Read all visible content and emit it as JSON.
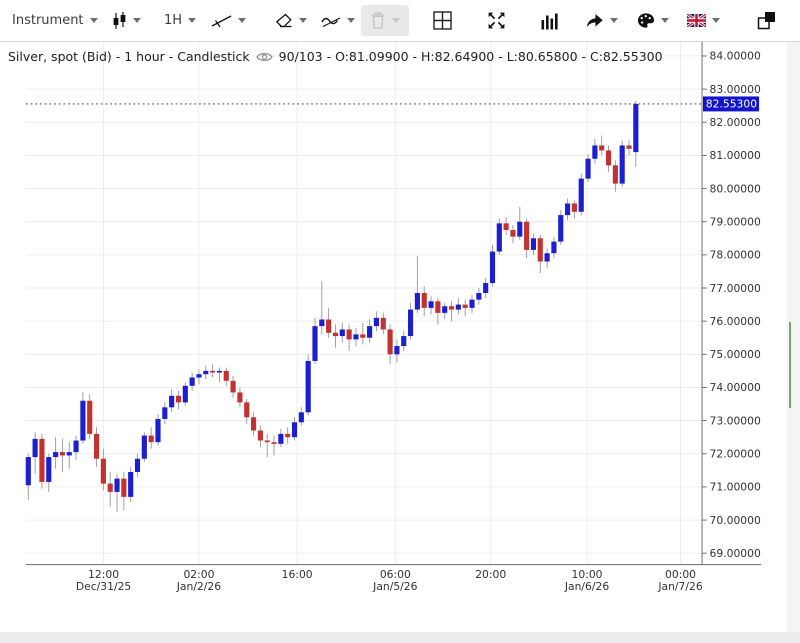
{
  "toolbar": {
    "instrument_label": "Instrument",
    "timeframe_label": "1H",
    "icons": [
      "candlestick-icon",
      "trend-line-icon",
      "eraser-icon",
      "indicator-zigzag-icon",
      "trash-icon",
      "grid-pane-icon",
      "expand-icon",
      "bar-chart-icon",
      "share-arrow-icon",
      "palette-icon",
      "uk-flag-icon",
      "overlapping-windows-icon"
    ]
  },
  "header": {
    "title": "Silver, spot (Bid) - 1 hour - Candlestick",
    "stats": "90/103 - O:81.09900 - H:82.64900 - L:80.65800 - C:82.55300",
    "visibility_icon": "eye-icon"
  },
  "chart_data": {
    "type": "candlestick",
    "symbol": "Silver, spot (Bid)",
    "timeframe": "1 hour",
    "visible_bars": "90/103",
    "last_bar": {
      "open": 81.099,
      "high": 82.649,
      "low": 80.658,
      "close": 82.553
    },
    "current_price": 82.553,
    "current_price_label": "82.55300",
    "y_axis": {
      "min": 69,
      "max": 84,
      "step": 1,
      "ticks": [
        {
          "value": 84,
          "label": "84.00000"
        },
        {
          "value": 83,
          "label": "83.00000"
        },
        {
          "value": 82,
          "label": "82.00000"
        },
        {
          "value": 81,
          "label": "81.00000"
        },
        {
          "value": 80,
          "label": "80.00000"
        },
        {
          "value": 79,
          "label": "79.00000"
        },
        {
          "value": 78,
          "label": "78.00000"
        },
        {
          "value": 77,
          "label": "77.00000"
        },
        {
          "value": 76,
          "label": "76.00000"
        },
        {
          "value": 75,
          "label": "75.00000"
        },
        {
          "value": 74,
          "label": "74.00000"
        },
        {
          "value": 73,
          "label": "73.00000"
        },
        {
          "value": 72,
          "label": "72.00000"
        },
        {
          "value": 71,
          "label": "71.00000"
        },
        {
          "value": 70,
          "label": "70.00000"
        },
        {
          "value": 69,
          "label": "69.00000"
        }
      ]
    },
    "x_axis": {
      "ticks": [
        {
          "time": "12:00",
          "date": "Dec/31/25"
        },
        {
          "time": "02:00",
          "date": "Jan/2/26"
        },
        {
          "time": "16:00",
          "date": ""
        },
        {
          "time": "06:00",
          "date": "Jan/5/26"
        },
        {
          "time": "20:00",
          "date": ""
        },
        {
          "time": "10:00",
          "date": "Jan/6/26"
        },
        {
          "time": "00:00",
          "date": "Jan/7/26"
        }
      ]
    },
    "candles": [
      [
        71.05,
        72.0,
        70.6,
        71.9
      ],
      [
        71.9,
        72.65,
        71.4,
        72.45
      ],
      [
        72.45,
        72.6,
        70.95,
        71.15
      ],
      [
        71.15,
        72.0,
        70.85,
        71.9
      ],
      [
        71.9,
        72.5,
        71.55,
        72.05
      ],
      [
        72.05,
        72.45,
        71.45,
        71.95
      ],
      [
        71.95,
        72.35,
        71.55,
        72.05
      ],
      [
        72.05,
        72.55,
        71.8,
        72.4
      ],
      [
        72.4,
        73.85,
        72.3,
        73.6
      ],
      [
        73.6,
        73.8,
        72.45,
        72.6
      ],
      [
        72.6,
        72.8,
        71.6,
        71.85
      ],
      [
        71.85,
        72.15,
        70.9,
        71.1
      ],
      [
        71.1,
        71.45,
        70.4,
        70.85
      ],
      [
        70.85,
        71.4,
        70.25,
        71.25
      ],
      [
        71.25,
        71.45,
        70.3,
        70.7
      ],
      [
        70.7,
        71.6,
        70.55,
        71.45
      ],
      [
        71.45,
        72.0,
        71.3,
        71.85
      ],
      [
        71.85,
        72.65,
        71.75,
        72.55
      ],
      [
        72.55,
        72.8,
        72.15,
        72.35
      ],
      [
        72.35,
        73.2,
        72.25,
        73.05
      ],
      [
        73.05,
        73.55,
        72.9,
        73.4
      ],
      [
        73.4,
        73.95,
        73.25,
        73.75
      ],
      [
        73.75,
        73.9,
        73.35,
        73.55
      ],
      [
        73.55,
        74.15,
        73.45,
        74.05
      ],
      [
        74.05,
        74.45,
        73.9,
        74.3
      ],
      [
        74.3,
        74.55,
        74.1,
        74.4
      ],
      [
        74.4,
        74.65,
        74.25,
        74.5
      ],
      [
        74.5,
        74.7,
        74.3,
        74.45
      ],
      [
        74.45,
        74.6,
        74.15,
        74.5
      ],
      [
        74.5,
        74.6,
        74.05,
        74.2
      ],
      [
        74.2,
        74.35,
        73.7,
        73.85
      ],
      [
        73.85,
        74.0,
        73.4,
        73.55
      ],
      [
        73.55,
        73.65,
        72.9,
        73.1
      ],
      [
        73.1,
        73.25,
        72.55,
        72.7
      ],
      [
        72.7,
        72.85,
        72.2,
        72.4
      ],
      [
        72.4,
        72.6,
        71.9,
        72.35
      ],
      [
        72.35,
        72.55,
        71.95,
        72.3
      ],
      [
        72.3,
        72.75,
        72.2,
        72.6
      ],
      [
        72.6,
        72.8,
        72.3,
        72.5
      ],
      [
        72.5,
        73.1,
        72.4,
        72.95
      ],
      [
        72.95,
        73.4,
        72.85,
        73.25
      ],
      [
        73.25,
        75.0,
        73.15,
        74.8
      ],
      [
        74.8,
        76.1,
        74.7,
        75.85
      ],
      [
        75.85,
        77.2,
        75.6,
        76.05
      ],
      [
        76.05,
        76.4,
        75.5,
        75.65
      ],
      [
        75.65,
        75.9,
        75.2,
        75.55
      ],
      [
        75.55,
        75.95,
        75.35,
        75.75
      ],
      [
        75.75,
        75.9,
        75.1,
        75.45
      ],
      [
        75.45,
        75.8,
        75.25,
        75.6
      ],
      [
        75.6,
        75.95,
        75.3,
        75.5
      ],
      [
        75.5,
        76.05,
        75.35,
        75.85
      ],
      [
        75.85,
        76.3,
        75.7,
        76.1
      ],
      [
        76.1,
        76.25,
        75.6,
        75.75
      ],
      [
        75.75,
        75.9,
        74.7,
        75.0
      ],
      [
        75.0,
        75.45,
        74.75,
        75.25
      ],
      [
        75.25,
        75.7,
        75.1,
        75.55
      ],
      [
        75.55,
        76.55,
        75.45,
        76.35
      ],
      [
        76.35,
        77.95,
        76.25,
        76.85
      ],
      [
        76.85,
        77.05,
        76.15,
        76.4
      ],
      [
        76.4,
        76.75,
        76.2,
        76.6
      ],
      [
        76.6,
        76.7,
        75.9,
        76.25
      ],
      [
        76.25,
        76.55,
        76.05,
        76.45
      ],
      [
        76.45,
        76.6,
        76.0,
        76.35
      ],
      [
        76.35,
        76.7,
        76.2,
        76.5
      ],
      [
        76.5,
        76.65,
        76.15,
        76.4
      ],
      [
        76.4,
        76.8,
        76.25,
        76.65
      ],
      [
        76.65,
        77.0,
        76.5,
        76.85
      ],
      [
        76.85,
        77.3,
        76.7,
        77.15
      ],
      [
        77.15,
        78.3,
        77.05,
        78.1
      ],
      [
        78.1,
        79.1,
        78.0,
        78.95
      ],
      [
        78.95,
        79.15,
        78.6,
        78.75
      ],
      [
        78.75,
        78.9,
        78.35,
        78.55
      ],
      [
        78.55,
        79.45,
        78.45,
        79.0
      ],
      [
        79.0,
        79.1,
        77.9,
        78.15
      ],
      [
        78.15,
        78.65,
        78.0,
        78.5
      ],
      [
        78.5,
        78.6,
        77.45,
        77.8
      ],
      [
        77.8,
        78.2,
        77.6,
        78.05
      ],
      [
        78.05,
        78.55,
        77.9,
        78.4
      ],
      [
        78.4,
        79.35,
        78.3,
        79.2
      ],
      [
        79.2,
        79.7,
        79.05,
        79.55
      ],
      [
        79.55,
        79.65,
        79.1,
        79.3
      ],
      [
        79.3,
        80.45,
        79.2,
        80.3
      ],
      [
        80.3,
        81.05,
        80.2,
        80.9
      ],
      [
        80.9,
        81.5,
        80.75,
        81.3
      ],
      [
        81.3,
        81.6,
        81.0,
        81.15
      ],
      [
        81.15,
        81.3,
        80.5,
        80.7
      ],
      [
        80.7,
        80.85,
        79.9,
        80.15
      ],
      [
        80.15,
        81.45,
        80.05,
        81.3
      ],
      [
        81.3,
        81.45,
        81.0,
        81.2
      ],
      [
        81.099,
        82.649,
        80.658,
        82.553
      ]
    ],
    "colors": {
      "up": "#1b1fd0",
      "down": "#c43131",
      "wick": "#999999",
      "grid": "#ececec",
      "axis": "#666666",
      "text": "#333333",
      "price_label_bg": "#1414cc",
      "price_label_text": "#ffffff",
      "current_line": "#333333",
      "scroll_green": "#72a868"
    },
    "legend_position": "top-left",
    "grid": true
  }
}
